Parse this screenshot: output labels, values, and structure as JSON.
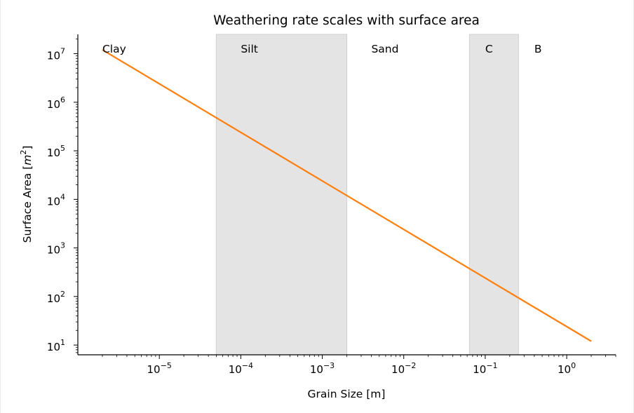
{
  "chart_data": {
    "type": "line",
    "title": "Weathering rate scales with surface area",
    "xlabel": "Grain Size [m]",
    "ylabel_text": "Surface Area [",
    "ylabel_unit_base": "m",
    "ylabel_unit_exp": "2",
    "ylabel_close": "]",
    "x_scale": "log",
    "y_scale": "log",
    "xlim": [
      1e-06,
      4.0
    ],
    "ylim": [
      6.3,
      25000000
    ],
    "grid": false,
    "x_ticks": [
      {
        "base": "10",
        "exp": "−5",
        "value": 1e-05
      },
      {
        "base": "10",
        "exp": "−4",
        "value": 0.0001
      },
      {
        "base": "10",
        "exp": "−3",
        "value": 0.001
      },
      {
        "base": "10",
        "exp": "−2",
        "value": 0.01
      },
      {
        "base": "10",
        "exp": "−1",
        "value": 0.1
      },
      {
        "base": "10",
        "exp": "0",
        "value": 1
      }
    ],
    "y_ticks": [
      {
        "base": "10",
        "exp": "1",
        "value": 10
      },
      {
        "base": "10",
        "exp": "2",
        "value": 100
      },
      {
        "base": "10",
        "exp": "3",
        "value": 1000
      },
      {
        "base": "10",
        "exp": "4",
        "value": 10000
      },
      {
        "base": "10",
        "exp": "5",
        "value": 100000
      },
      {
        "base": "10",
        "exp": "6",
        "value": 1000000
      },
      {
        "base": "10",
        "exp": "7",
        "value": 10000000
      }
    ],
    "shaded_bands": [
      {
        "label": "Silt",
        "x_range": [
          5e-05,
          0.002
        ]
      },
      {
        "label": "C",
        "x_range": [
          0.064,
          0.256
        ]
      }
    ],
    "region_labels": [
      {
        "label": "Clay",
        "x": 2e-06
      },
      {
        "label": "Silt",
        "x": 0.0001
      },
      {
        "label": "Sand",
        "x": 0.004
      },
      {
        "label": "C",
        "x": 0.1
      },
      {
        "label": "B",
        "x": 0.4
      }
    ],
    "series": [
      {
        "color": "#ff7f0e",
        "x": [
          2e-06,
          2.0
        ],
        "y": [
          12000000,
          12
        ]
      }
    ],
    "colors": {
      "line": "#ff7f0e",
      "band_fill": "#e4e4e4",
      "band_edge": "#cfcfcf",
      "axis": "#000000"
    }
  }
}
